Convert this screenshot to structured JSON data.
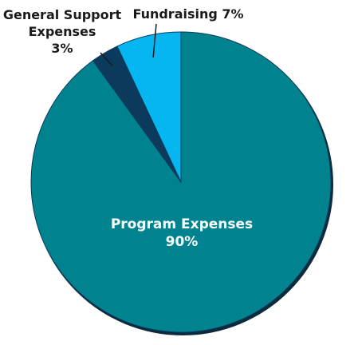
{
  "chart_data": {
    "type": "pie",
    "slices": [
      {
        "label": "Program Expenses",
        "value": 90,
        "value_text": "90%",
        "color": "#00838f"
      },
      {
        "label": "General Support Expenses",
        "value": 3,
        "value_text": "3%",
        "color": "#0b3a5c"
      },
      {
        "label": "Fundraising",
        "value": 7,
        "value_text": "7%",
        "color": "#05b6f0"
      }
    ],
    "labels": {
      "program": {
        "line1": "Program Expenses",
        "line2": "90%"
      },
      "general": {
        "line1": "General Support",
        "line2": "Expenses",
        "line3": "3%"
      },
      "fundraising": {
        "line1": "Fundraising 7%"
      }
    },
    "colors": {
      "shadow": "#0b2a3c",
      "slice_stroke": "#0b3a5c",
      "leader": "#1a1a1a"
    }
  }
}
